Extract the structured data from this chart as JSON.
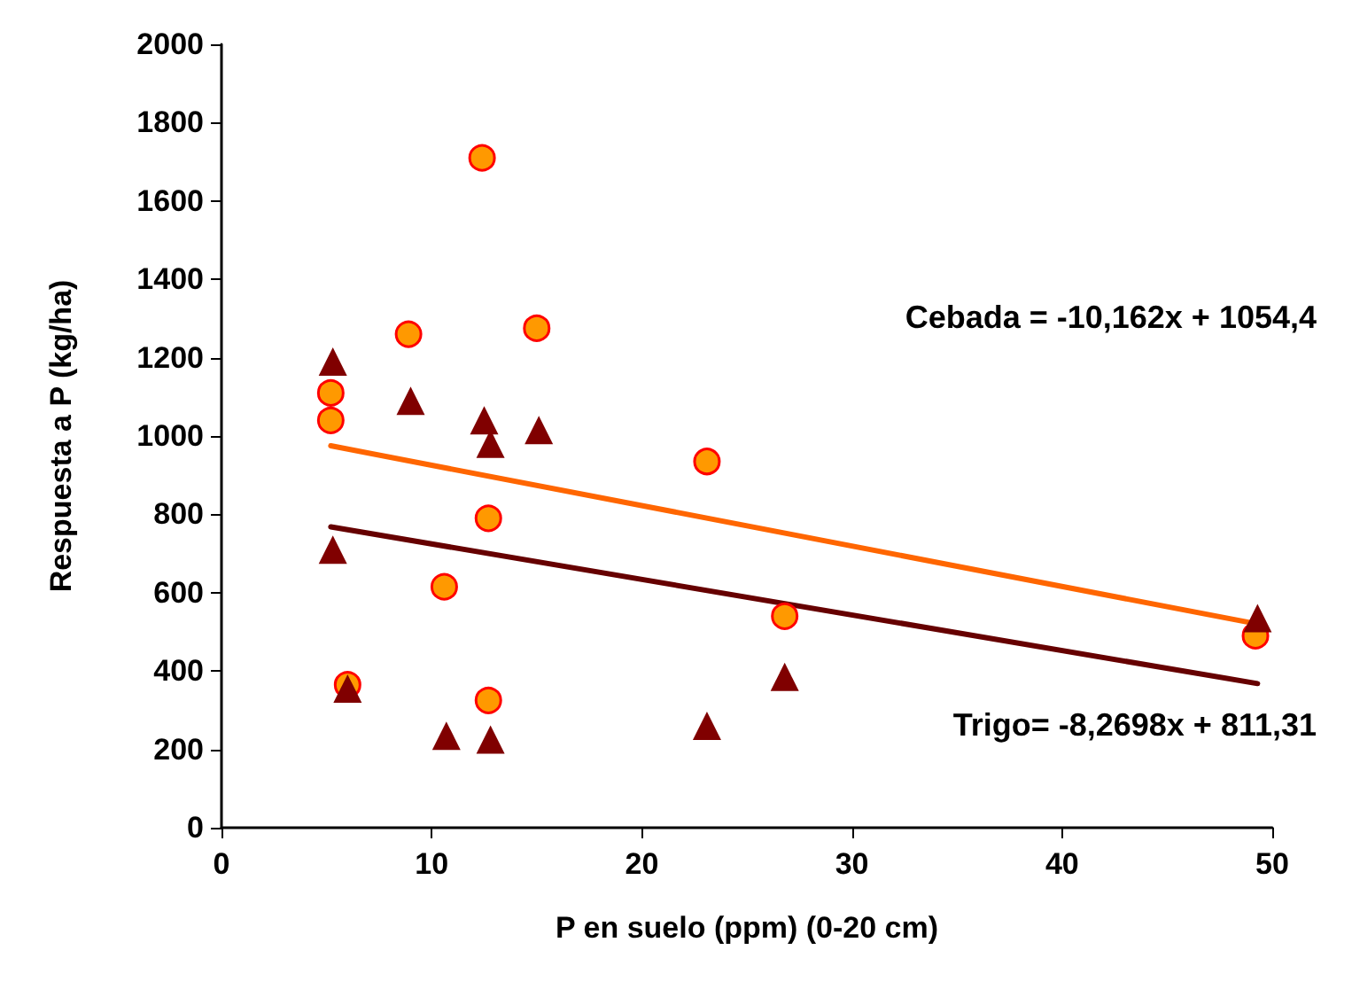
{
  "chart_data": {
    "type": "scatter",
    "xlabel": "P en suelo (ppm) (0-20 cm)",
    "ylabel": "Respuesta a P (kg/ha)",
    "annotations": [
      "Cebada = -10,162x + 1054,4",
      "Trigo= -8,2698x + 811,31"
    ],
    "series": [
      {
        "marker": "circle",
        "color": "#ff9900",
        "x": [
          12.4,
          8.9,
          15.0,
          5.2,
          5.2,
          12.7,
          10.6,
          6.0,
          12.7,
          23.1,
          26.8,
          49.2
        ],
        "values": [
          1710,
          1260,
          1275,
          1110,
          1040,
          790,
          615,
          365,
          325,
          935,
          540,
          490
        ]
      },
      {
        "marker": "triangle",
        "color": "#800000",
        "x": [
          5.3,
          9.0,
          12.5,
          12.8,
          15.1,
          5.3,
          6.0,
          10.7,
          12.8,
          23.1,
          26.8,
          49.3
        ],
        "values": [
          1190,
          1090,
          1040,
          980,
          1015,
          710,
          355,
          235,
          225,
          260,
          385,
          535
        ]
      },
      {
        "type": "line",
        "marker": "none",
        "color": "#ff6600",
        "x": [
          5.2,
          49.3
        ],
        "values": [
          975,
          520
        ]
      },
      {
        "type": "line",
        "marker": "none",
        "color": "#660000",
        "x": [
          5.2,
          49.3
        ],
        "values": [
          768,
          368
        ]
      }
    ],
    "xlim": [
      0,
      50
    ],
    "xticks": [
      0,
      10,
      20,
      30,
      40,
      50
    ],
    "ylim": [
      0,
      2000
    ],
    "yticks": [
      0,
      200,
      400,
      600,
      800,
      1000,
      1200,
      1400,
      1600,
      1800,
      2000
    ],
    "grid": false
  }
}
